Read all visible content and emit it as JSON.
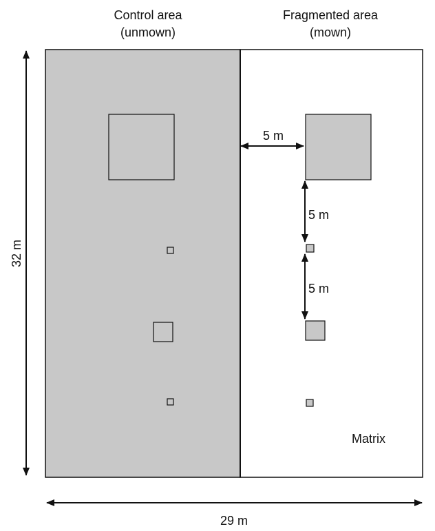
{
  "colors": {
    "control_fill": "#c8c8c8",
    "fragment_fill": "#c8c8c8",
    "matrix_fill": "#ffffff",
    "stroke": "#111111"
  },
  "labels": {
    "control_line1": "Control area",
    "control_line2": "(unmown)",
    "fragmented_line1": "Fragmented area",
    "fragmented_line2": "(mown)",
    "height": "32 m",
    "width": "29 m",
    "gap_horizontal": "5 m",
    "gap_vertical_1": "5 m",
    "gap_vertical_2": "5 m",
    "matrix": "Matrix"
  }
}
